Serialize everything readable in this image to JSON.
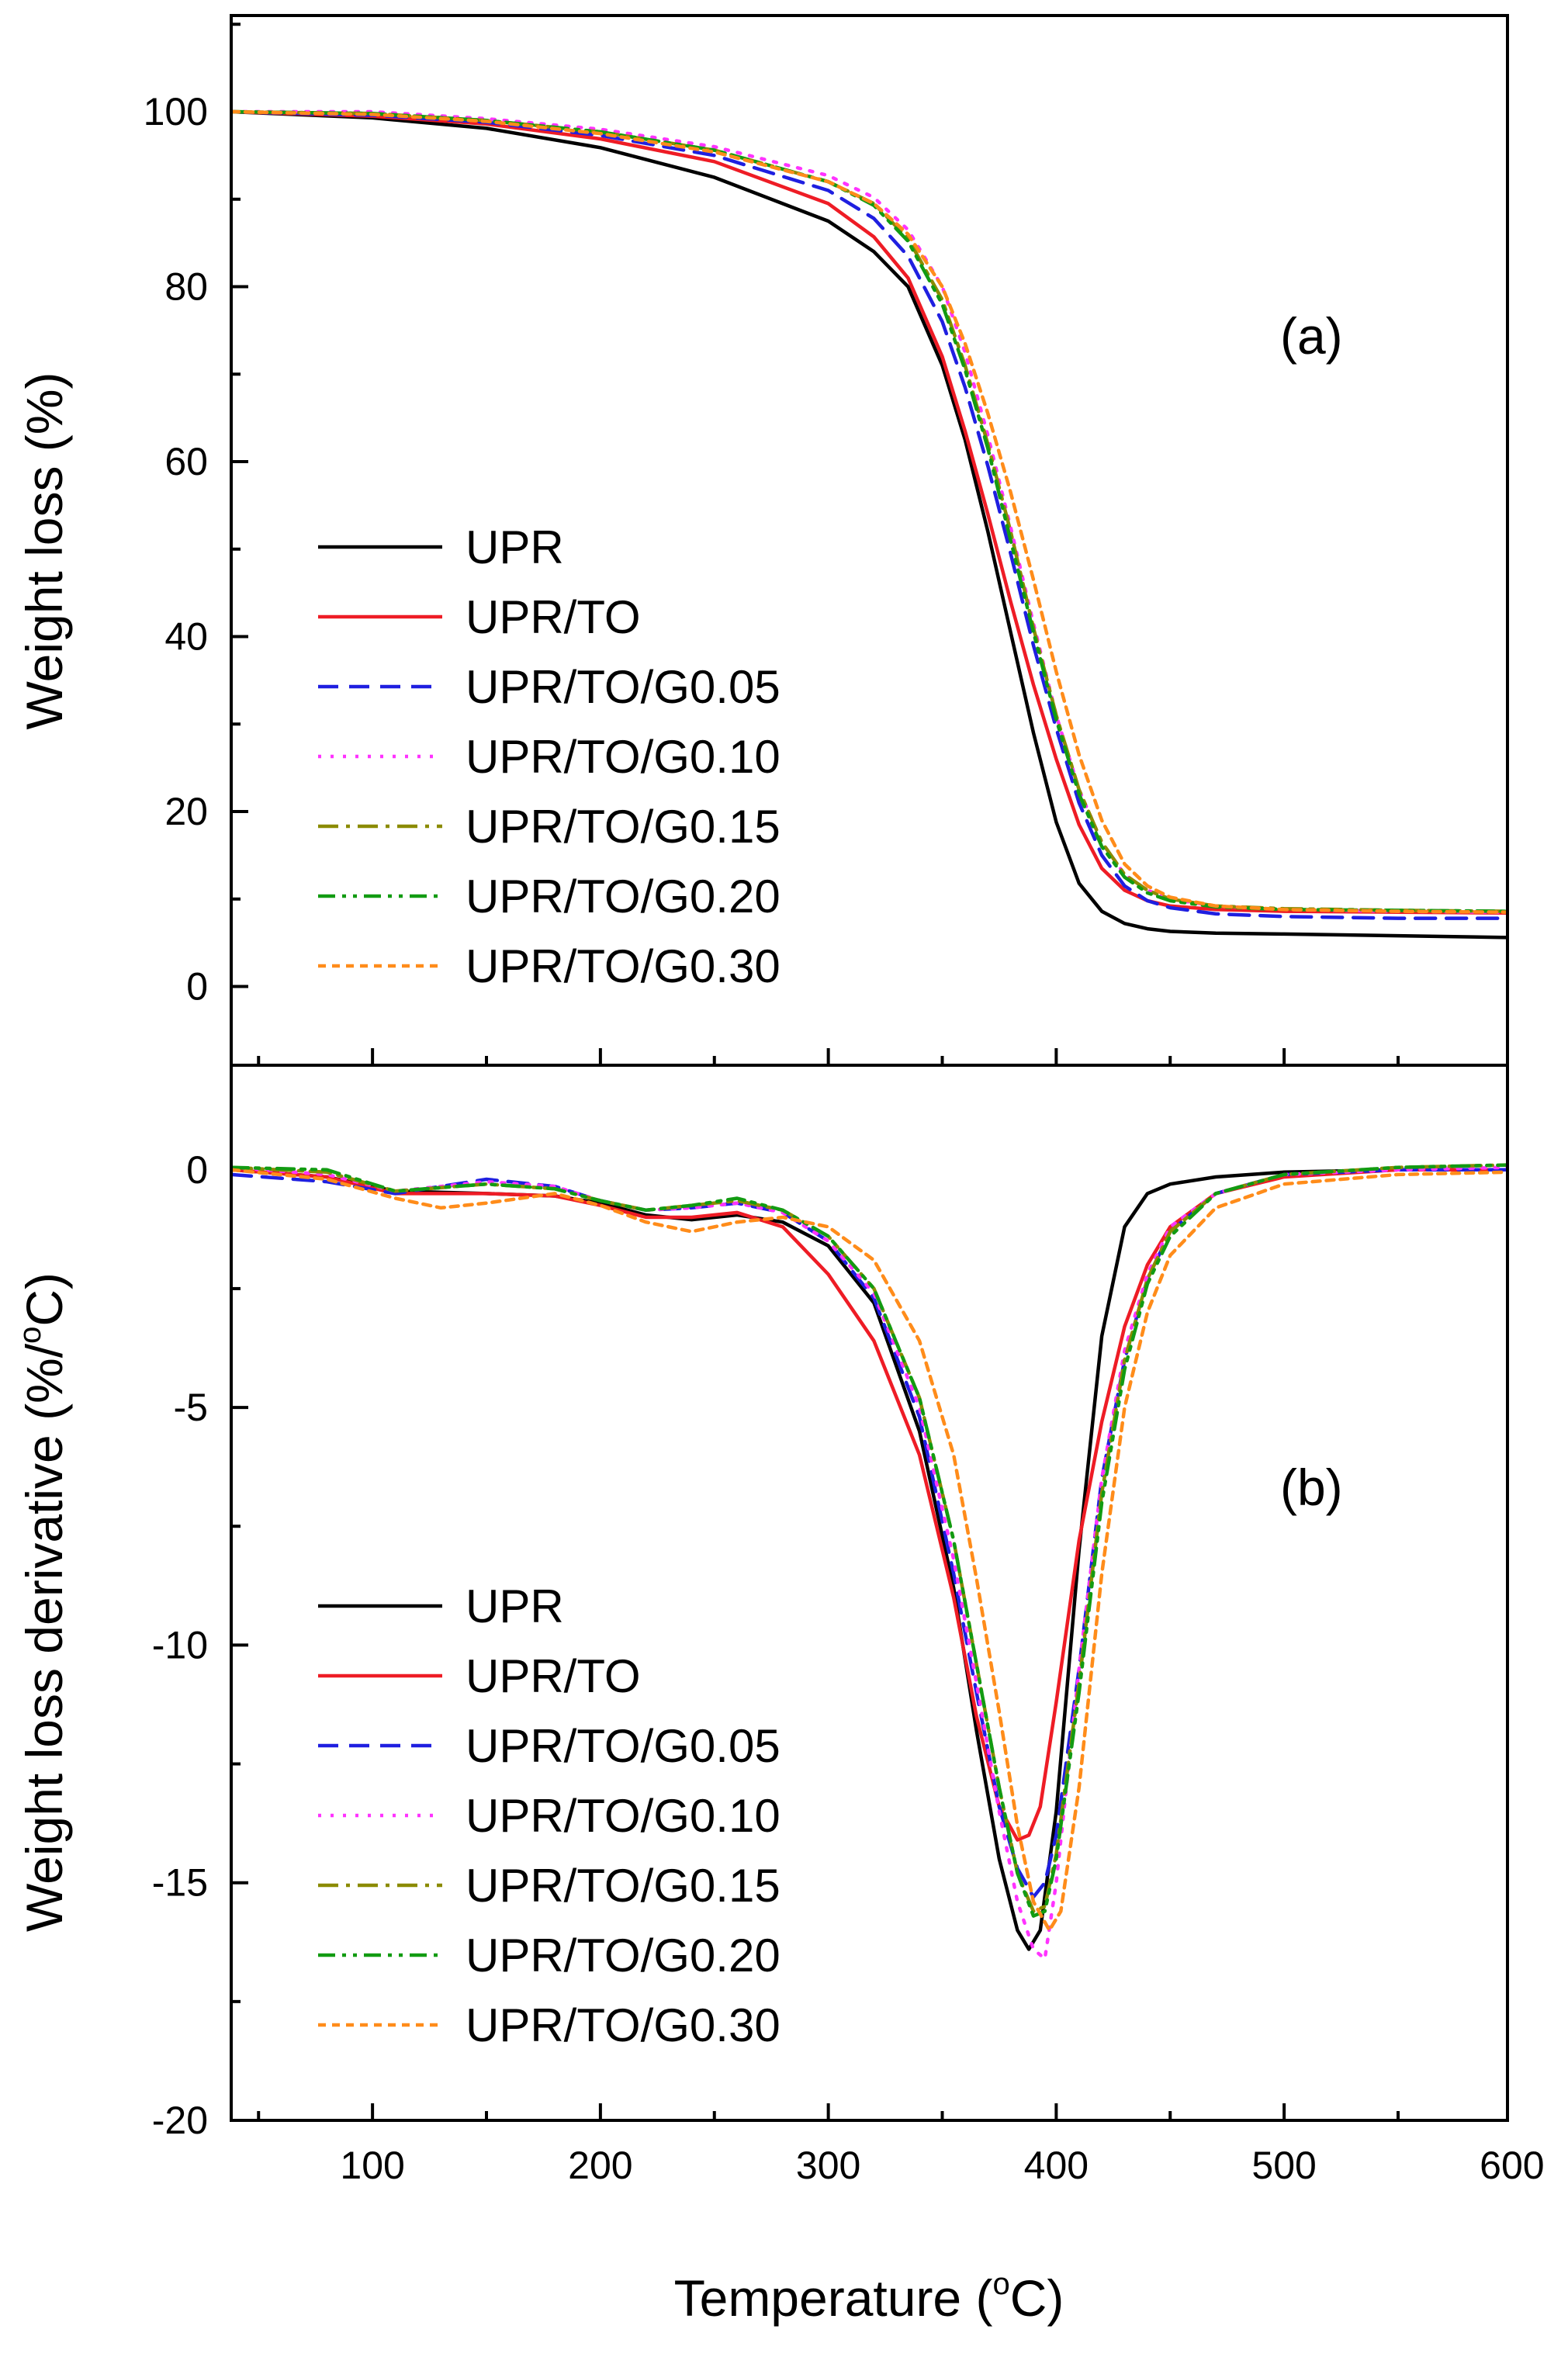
{
  "chart_data": {
    "type": "line",
    "xlabel": "Temperature (°C)",
    "xlabel_base": "Temperature (",
    "xlabel_deg": "o",
    "xlabel_unit": "C)",
    "xlim": [
      38,
      598
    ],
    "xticks": [
      100,
      200,
      300,
      400,
      500,
      600
    ],
    "xtick_labels": [
      "100",
      "200",
      "300",
      "400",
      "500",
      "600"
    ],
    "legend_position": "lower-left",
    "panels": [
      {
        "id": "a",
        "label": "(a)",
        "ylabel": "Weight loss (%)",
        "ylim": [
          -9,
          111
        ],
        "yticks": [
          0,
          20,
          40,
          60,
          80,
          100
        ],
        "ytick_labels": [
          "0",
          "20",
          "40",
          "60",
          "80",
          "100"
        ],
        "series": [
          {
            "name": "UPR",
            "color": "#000000",
            "dash": "solid",
            "x": [
              38,
              100,
              150,
              200,
              250,
              300,
              320,
              335,
              350,
              360,
              370,
              380,
              390,
              400,
              410,
              420,
              430,
              440,
              450,
              470,
              500,
              550,
              598
            ],
            "y": [
              100,
              99.3,
              98.1,
              95.9,
              92.5,
              87.5,
              84.0,
              80.0,
              71.0,
              62.5,
              52.0,
              40.5,
              29.0,
              18.8,
              11.8,
              8.6,
              7.2,
              6.6,
              6.3,
              6.1,
              6.0,
              5.8,
              5.6
            ]
          },
          {
            "name": "UPR/TO",
            "color": "#ee1c25",
            "dash": "solid",
            "x": [
              38,
              100,
              150,
              200,
              250,
              300,
              320,
              335,
              350,
              360,
              370,
              380,
              390,
              400,
              410,
              420,
              430,
              440,
              450,
              470,
              500,
              550,
              598
            ],
            "y": [
              100,
              99.5,
              98.6,
              96.9,
              94.3,
              89.5,
              85.7,
              81.0,
              72.0,
              63.5,
              54.0,
              44.0,
              34.5,
              26.0,
              18.5,
              13.5,
              11.0,
              9.8,
              9.2,
              8.8,
              8.6,
              8.5,
              8.4
            ]
          },
          {
            "name": "UPR/TO/G0.05",
            "color": "#1f1fe0",
            "dash": "dashed",
            "x": [
              38,
              100,
              150,
              200,
              250,
              300,
              320,
              335,
              350,
              360,
              370,
              380,
              390,
              400,
              410,
              420,
              430,
              440,
              450,
              470,
              500,
              550,
              598
            ],
            "y": [
              100,
              99.6,
              98.8,
              97.3,
              95.0,
              91.0,
              87.8,
              83.5,
              76.0,
              68.5,
              59.5,
              49.5,
              39.0,
              29.5,
              21.0,
              15.0,
              11.5,
              9.8,
              9.0,
              8.3,
              8.0,
              7.8,
              7.8
            ]
          },
          {
            "name": "UPR/TO/G0.10",
            "color": "#ff33ff",
            "dash": "dotted",
            "x": [
              38,
              100,
              150,
              200,
              250,
              300,
              320,
              335,
              350,
              360,
              370,
              380,
              390,
              400,
              410,
              420,
              430,
              440,
              450,
              470,
              500,
              550,
              598
            ],
            "y": [
              100,
              100,
              99.2,
              98.0,
              96.0,
              92.7,
              90.2,
              86.5,
              80.0,
              72.5,
              63.0,
              52.5,
              41.5,
              31.0,
              22.5,
              16.5,
              12.8,
              11.0,
              10.0,
              9.2,
              8.8,
              8.6,
              8.5
            ]
          },
          {
            "name": "UPR/TO/G0.15",
            "color": "#8b8b00",
            "dash": "dashdot",
            "x": [
              38,
              100,
              150,
              200,
              250,
              300,
              320,
              335,
              350,
              360,
              370,
              380,
              390,
              400,
              410,
              420,
              430,
              440,
              450,
              470,
              500,
              550,
              598
            ],
            "y": [
              100,
              99.8,
              99.0,
              97.7,
              95.6,
              92.0,
              89.5,
              85.5,
              78.5,
              71.0,
              62.0,
              52.0,
              41.0,
              31.0,
              22.5,
              16.5,
              12.8,
              11.0,
              10.0,
              9.2,
              8.9,
              8.7,
              8.6
            ]
          },
          {
            "name": "UPR/TO/G0.20",
            "color": "#129b12",
            "dash": "dashdotdot",
            "x": [
              38,
              100,
              150,
              200,
              250,
              300,
              320,
              335,
              350,
              360,
              370,
              380,
              390,
              400,
              410,
              420,
              430,
              440,
              450,
              470,
              500,
              550,
              598
            ],
            "y": [
              100,
              99.8,
              99.0,
              97.7,
              95.6,
              92.0,
              89.3,
              85.2,
              78.0,
              70.5,
              61.5,
              51.0,
              40.5,
              30.5,
              22.0,
              16.0,
              12.5,
              10.7,
              9.8,
              9.1,
              8.8,
              8.7,
              8.6
            ]
          },
          {
            "name": "UPR/TO/G0.30",
            "color": "#ff8c1a",
            "dash": "shortdash",
            "x": [
              38,
              100,
              150,
              200,
              250,
              300,
              320,
              335,
              350,
              360,
              370,
              380,
              390,
              400,
              410,
              420,
              430,
              440,
              450,
              470,
              500,
              550,
              598
            ],
            "y": [
              100,
              99.7,
              98.9,
              97.5,
              95.4,
              92.0,
              89.5,
              86.0,
              80.0,
              73.5,
              65.5,
              56.5,
              46.5,
              36.0,
              26.5,
              19.0,
              14.0,
              11.5,
              10.2,
              9.2,
              8.8,
              8.6,
              8.5
            ]
          }
        ]
      },
      {
        "id": "b",
        "label": "(b)",
        "ylabel": "Weight loss derivative (%/°C)",
        "ylabel_base": "Weight loss derivative (%/",
        "ylabel_deg": "o",
        "ylabel_unit": "C)",
        "ylim": [
          -20,
          2.2
        ],
        "yticks": [
          -20,
          -15,
          -10,
          -5,
          0
        ],
        "ytick_labels": [
          "-20",
          "-15",
          "-10",
          "-5",
          "0"
        ],
        "series": [
          {
            "name": "UPR",
            "color": "#000000",
            "dash": "solid",
            "x": [
              38,
              80,
              110,
              150,
              180,
              200,
              220,
              240,
              260,
              280,
              300,
              320,
              340,
              355,
              365,
              375,
              383,
              388,
              393,
              400,
              410,
              420,
              430,
              440,
              450,
              470,
              500,
              550,
              598
            ],
            "y": [
              0,
              -0.15,
              -0.45,
              -0.5,
              -0.55,
              -0.7,
              -0.95,
              -1.05,
              -0.95,
              -1.1,
              -1.6,
              -2.8,
              -5.5,
              -8.8,
              -11.8,
              -14.5,
              -16.0,
              -16.4,
              -16.0,
              -13.5,
              -8.0,
              -3.5,
              -1.2,
              -0.5,
              -0.3,
              -0.15,
              -0.05,
              0,
              0
            ]
          },
          {
            "name": "UPR/TO",
            "color": "#ee1c25",
            "dash": "solid",
            "x": [
              38,
              80,
              110,
              150,
              180,
              200,
              220,
              240,
              260,
              280,
              300,
              320,
              340,
              355,
              365,
              375,
              383,
              388,
              393,
              400,
              410,
              420,
              430,
              440,
              450,
              470,
              500,
              550,
              598
            ],
            "y": [
              0,
              -0.15,
              -0.5,
              -0.5,
              -0.55,
              -0.75,
              -1.0,
              -1.0,
              -0.9,
              -1.2,
              -2.2,
              -3.6,
              -6.0,
              -9.0,
              -11.5,
              -13.4,
              -14.1,
              -14.0,
              -13.4,
              -11.2,
              -7.8,
              -5.3,
              -3.3,
              -2.0,
              -1.2,
              -0.5,
              -0.15,
              0,
              0
            ]
          },
          {
            "name": "UPR/TO/G0.05",
            "color": "#1f1fe0",
            "dash": "dashed",
            "x": [
              38,
              80,
              110,
              150,
              180,
              200,
              220,
              240,
              260,
              280,
              300,
              320,
              340,
              355,
              365,
              375,
              383,
              390,
              395,
              400,
              410,
              420,
              430,
              440,
              450,
              470,
              500,
              550,
              598
            ],
            "y": [
              -0.1,
              -0.25,
              -0.5,
              -0.2,
              -0.35,
              -0.65,
              -0.85,
              -0.8,
              -0.7,
              -0.9,
              -1.5,
              -2.7,
              -5.2,
              -8.5,
              -11.0,
              -13.4,
              -14.7,
              -15.3,
              -15.0,
              -14.0,
              -10.5,
              -6.5,
              -4.0,
              -2.3,
              -1.3,
              -0.5,
              -0.1,
              0,
              0
            ]
          },
          {
            "name": "UPR/TO/G0.10",
            "color": "#ff33ff",
            "dash": "dotted",
            "x": [
              38,
              80,
              110,
              150,
              180,
              200,
              220,
              240,
              260,
              280,
              300,
              320,
              340,
              355,
              365,
              375,
              383,
              390,
              395,
              400,
              410,
              420,
              430,
              440,
              450,
              470,
              500,
              550,
              598
            ],
            "y": [
              0.05,
              -0.1,
              -0.45,
              -0.25,
              -0.35,
              -0.65,
              -0.85,
              -0.8,
              -0.7,
              -0.9,
              -1.5,
              -2.6,
              -5.0,
              -8.2,
              -10.8,
              -13.5,
              -15.4,
              -16.4,
              -16.6,
              -15.0,
              -10.5,
              -6.5,
              -3.8,
              -2.2,
              -1.2,
              -0.5,
              -0.1,
              0,
              0.05
            ]
          },
          {
            "name": "UPR/TO/G0.15",
            "color": "#8b8b00",
            "dash": "dashdot",
            "x": [
              38,
              80,
              110,
              150,
              180,
              200,
              220,
              240,
              260,
              280,
              300,
              320,
              340,
              355,
              365,
              375,
              383,
              390,
              395,
              400,
              410,
              420,
              430,
              440,
              450,
              470,
              500,
              550,
              598
            ],
            "y": [
              0.05,
              -0.05,
              -0.45,
              -0.3,
              -0.4,
              -0.65,
              -0.85,
              -0.75,
              -0.65,
              -0.85,
              -1.4,
              -2.5,
              -4.8,
              -7.8,
              -10.4,
              -13.0,
              -14.8,
              -15.6,
              -15.5,
              -14.4,
              -10.8,
              -6.8,
              -4.0,
              -2.3,
              -1.3,
              -0.5,
              -0.1,
              0.05,
              0.1
            ]
          },
          {
            "name": "UPR/TO/G0.20",
            "color": "#129b12",
            "dash": "dashdotdot",
            "x": [
              38,
              80,
              110,
              150,
              180,
              200,
              220,
              240,
              260,
              280,
              300,
              320,
              340,
              355,
              365,
              375,
              383,
              390,
              395,
              400,
              410,
              420,
              430,
              440,
              450,
              470,
              500,
              550,
              598
            ],
            "y": [
              0.05,
              0.0,
              -0.45,
              -0.3,
              -0.4,
              -0.65,
              -0.85,
              -0.75,
              -0.6,
              -0.85,
              -1.4,
              -2.5,
              -4.8,
              -7.8,
              -10.4,
              -13.0,
              -14.8,
              -15.7,
              -15.6,
              -14.5,
              -11.0,
              -7.0,
              -4.2,
              -2.4,
              -1.4,
              -0.5,
              -0.1,
              0.05,
              0.1
            ]
          },
          {
            "name": "UPR/TO/G0.30",
            "color": "#ff8c1a",
            "dash": "shortdash",
            "x": [
              38,
              80,
              110,
              130,
              150,
              180,
              200,
              220,
              240,
              260,
              280,
              300,
              320,
              340,
              355,
              365,
              375,
              383,
              390,
              397,
              402,
              410,
              420,
              430,
              440,
              450,
              470,
              500,
              550,
              598
            ],
            "y": [
              0,
              -0.2,
              -0.6,
              -0.8,
              -0.7,
              -0.5,
              -0.75,
              -1.1,
              -1.3,
              -1.1,
              -1.0,
              -1.2,
              -1.9,
              -3.6,
              -6.0,
              -8.6,
              -11.4,
              -13.8,
              -15.4,
              -16.0,
              -15.6,
              -13.0,
              -8.5,
              -5.0,
              -3.0,
              -1.8,
              -0.8,
              -0.3,
              -0.1,
              -0.05
            ]
          }
        ]
      }
    ]
  }
}
